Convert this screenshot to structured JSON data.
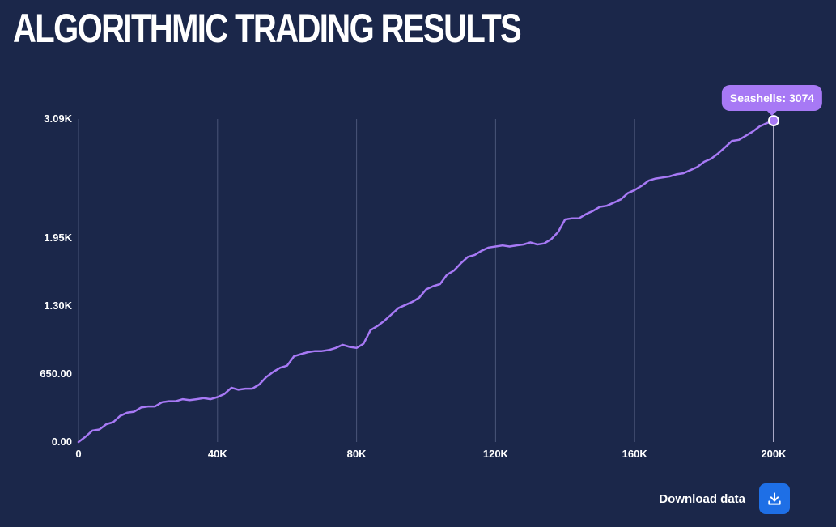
{
  "header": {
    "title": "ALGORITHMIC TRADING RESULTS"
  },
  "tooltip": {
    "label": "Seashells: 3074"
  },
  "download": {
    "label": "Download data",
    "icon": "download-icon"
  },
  "colors": {
    "background": "#1b274a",
    "line": "#a779f5",
    "grid": "#4a5578",
    "button": "#1e6fe6"
  },
  "chart_data": {
    "type": "line",
    "title": "ALGORITHMIC TRADING RESULTS",
    "xlabel": "",
    "ylabel": "",
    "xlim": [
      0,
      200000
    ],
    "ylim": [
      0,
      3090
    ],
    "x_ticks": [
      0,
      40000,
      80000,
      120000,
      160000,
      200000
    ],
    "x_tick_labels": [
      "0",
      "40K",
      "80K",
      "120K",
      "160K",
      "200K"
    ],
    "y_ticks": [
      0,
      650,
      1300,
      1950,
      3090
    ],
    "y_tick_labels": [
      "0.00",
      "650.00",
      "1.30K",
      "1.95K",
      "3.09K"
    ],
    "grid": "vertical",
    "series": [
      {
        "name": "Seashells",
        "x": [
          0,
          2000,
          4000,
          6000,
          8000,
          10000,
          12000,
          14000,
          16000,
          18000,
          20000,
          22000,
          24000,
          26000,
          28000,
          30000,
          32000,
          34000,
          36000,
          38000,
          40000,
          42000,
          44000,
          46000,
          48000,
          50000,
          52000,
          54000,
          56000,
          58000,
          60000,
          62000,
          64000,
          66000,
          68000,
          70000,
          72000,
          74000,
          76000,
          78000,
          80000,
          82000,
          84000,
          86000,
          88000,
          90000,
          92000,
          94000,
          96000,
          98000,
          100000,
          102000,
          104000,
          106000,
          108000,
          110000,
          112000,
          114000,
          116000,
          118000,
          120000,
          122000,
          124000,
          126000,
          128000,
          130000,
          132000,
          134000,
          136000,
          138000,
          140000,
          142000,
          144000,
          146000,
          148000,
          150000,
          152000,
          154000,
          156000,
          158000,
          160000,
          162000,
          164000,
          166000,
          168000,
          170000,
          172000,
          174000,
          176000,
          178000,
          180000,
          182000,
          184000,
          186000,
          188000,
          190000,
          192000,
          194000,
          196000,
          198000,
          200000
        ],
        "values": [
          0,
          50,
          110,
          120,
          170,
          190,
          250,
          280,
          290,
          330,
          340,
          340,
          380,
          390,
          390,
          410,
          400,
          410,
          420,
          410,
          430,
          460,
          520,
          500,
          510,
          510,
          550,
          620,
          670,
          710,
          730,
          820,
          840,
          860,
          870,
          870,
          880,
          900,
          930,
          910,
          900,
          940,
          1070,
          1110,
          1160,
          1220,
          1280,
          1310,
          1340,
          1380,
          1460,
          1490,
          1510,
          1600,
          1640,
          1710,
          1770,
          1790,
          1830,
          1860,
          1870,
          1880,
          1870,
          1880,
          1890,
          1910,
          1890,
          1900,
          1940,
          2010,
          2130,
          2140,
          2140,
          2180,
          2210,
          2250,
          2260,
          2290,
          2320,
          2380,
          2410,
          2450,
          2500,
          2520,
          2530,
          2540,
          2560,
          2570,
          2600,
          2630,
          2680,
          2710,
          2760,
          2820,
          2880,
          2890,
          2930,
          2970,
          3020,
          3050,
          3074
        ]
      }
    ],
    "highlight_point": {
      "x": 200000,
      "y": 3074
    }
  }
}
